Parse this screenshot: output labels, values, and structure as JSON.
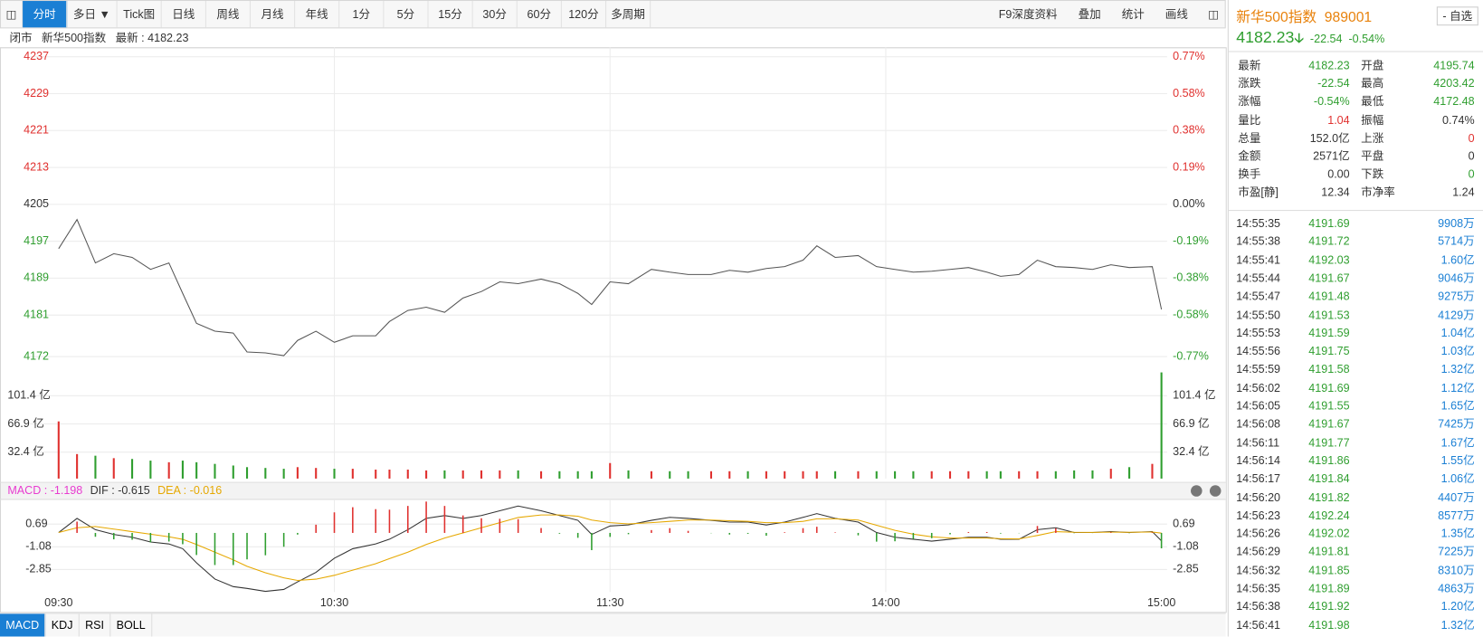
{
  "toolbar": {
    "tabs": [
      "分时",
      "多日 ▼",
      "Tick图",
      "日线",
      "周线",
      "月线",
      "年线",
      "1分",
      "5分",
      "15分",
      "30分",
      "60分",
      "120分",
      "多周期"
    ],
    "active": 0,
    "right": [
      "F9深度资料",
      "叠加",
      "统计",
      "画线"
    ]
  },
  "info_bar": {
    "status": "闭市",
    "name": "新华500指数",
    "latest": "最新 : 4182.23"
  },
  "time_axis": {
    "xticks": [
      {
        "value": 0,
        "label": "09:30"
      },
      {
        "value": 60,
        "label": "10:30"
      },
      {
        "value": 120,
        "label": "11:30"
      },
      {
        "value": 180,
        "label": "14:00"
      },
      {
        "value": 240,
        "label": "15:00"
      }
    ]
  },
  "price_chart": {
    "type": "line",
    "color": "#555555",
    "xlim": [
      0,
      240
    ],
    "ylim": [
      4172,
      4237
    ],
    "yticks": [
      4172,
      4181,
      4189,
      4197,
      4205,
      4213,
      4221,
      4229,
      4237
    ],
    "ytick_colors": [
      "#2f9e2f",
      "#2f9e2f",
      "#2f9e2f",
      "#2f9e2f",
      "#333333",
      "#e0312f",
      "#e0312f",
      "#e0312f",
      "#e0312f"
    ],
    "pct_labels": [
      "-0.77%",
      "-0.58%",
      "-0.38%",
      "-0.19%",
      "0.00%",
      "0.19%",
      "0.38%",
      "0.58%",
      "0.77%"
    ],
    "x": [
      0,
      4,
      8,
      12,
      16,
      20,
      24,
      27,
      30,
      34,
      38,
      41,
      45,
      49,
      52,
      56,
      60,
      64,
      69,
      72,
      76,
      80,
      84,
      88,
      92,
      96,
      100,
      105,
      109,
      113,
      116,
      120,
      124,
      129,
      133,
      137,
      142,
      146,
      150,
      154,
      158,
      162,
      165,
      169,
      174,
      178,
      182,
      186,
      190,
      194,
      198,
      202,
      205,
      209,
      213,
      217,
      221,
      225,
      229,
      233,
      238,
      240
    ],
    "values": [
      4195.4,
      4201.7,
      4192.3,
      4194.3,
      4193.5,
      4190.9,
      4192.3,
      4185.7,
      4179.2,
      4177.5,
      4177.1,
      4173.0,
      4172.8,
      4172.2,
      4175.5,
      4177.5,
      4175.1,
      4176.5,
      4176.5,
      4179.6,
      4182.0,
      4182.7,
      4181.6,
      4184.7,
      4186.1,
      4188.2,
      4187.8,
      4188.8,
      4187.8,
      4185.7,
      4183.3,
      4188.2,
      4187.8,
      4190.9,
      4190.3,
      4189.8,
      4189.8,
      4190.7,
      4190.3,
      4191.1,
      4191.5,
      4192.9,
      4196.0,
      4193.5,
      4193.9,
      4191.5,
      4190.9,
      4190.3,
      4190.5,
      4190.9,
      4191.3,
      4190.3,
      4189.4,
      4189.8,
      4192.9,
      4191.5,
      4191.3,
      4190.9,
      4191.9,
      4191.3,
      4191.5,
      4182.23
    ]
  },
  "volume_chart": {
    "type": "bar",
    "ylim": [
      0,
      132
    ],
    "yticks": [
      {
        "value": 32.4,
        "label": "32.4 亿"
      },
      {
        "value": 66.9,
        "label": "66.9 亿"
      },
      {
        "value": 101.4,
        "label": "101.4 亿"
      }
    ],
    "values": [
      70,
      30,
      28,
      25,
      24,
      22,
      20,
      22,
      20,
      18,
      16,
      14,
      13,
      12,
      14,
      13,
      12,
      12,
      11,
      11,
      11,
      10,
      10,
      10,
      10,
      10,
      10,
      9,
      9,
      9,
      9,
      19,
      10,
      9,
      9,
      9,
      9,
      9,
      9,
      9,
      9,
      9,
      9,
      9,
      9,
      9,
      9,
      9,
      9,
      9,
      9,
      9,
      9,
      9,
      9,
      9,
      10,
      10,
      12,
      14,
      18,
      130
    ],
    "colors": [
      "#e0312f",
      "#e0312f",
      "#2f9e2f",
      "#e0312f",
      "#2f9e2f",
      "#2f9e2f",
      "#e0312f",
      "#2f9e2f",
      "#2f9e2f",
      "#2f9e2f",
      "#2f9e2f",
      "#2f9e2f",
      "#2f9e2f",
      "#2f9e2f",
      "#e0312f",
      "#e0312f",
      "#2f9e2f",
      "#e0312f",
      "#e0312f",
      "#e0312f",
      "#e0312f",
      "#e0312f",
      "#2f9e2f",
      "#e0312f",
      "#e0312f",
      "#e0312f",
      "#2f9e2f",
      "#e0312f",
      "#2f9e2f",
      "#2f9e2f",
      "#2f9e2f",
      "#e0312f",
      "#2f9e2f",
      "#e0312f",
      "#2f9e2f",
      "#2f9e2f",
      "#e0312f",
      "#e0312f",
      "#2f9e2f",
      "#e0312f",
      "#e0312f",
      "#e0312f",
      "#e0312f",
      "#2f9e2f",
      "#e0312f",
      "#2f9e2f",
      "#2f9e2f",
      "#2f9e2f",
      "#e0312f",
      "#e0312f",
      "#e0312f",
      "#2f9e2f",
      "#2f9e2f",
      "#e0312f",
      "#e0312f",
      "#2f9e2f",
      "#2f9e2f",
      "#2f9e2f",
      "#e0312f",
      "#2f9e2f",
      "#e0312f",
      "#2f9e2f"
    ]
  },
  "macd_chart": {
    "legend": [
      "MACD : -1.198",
      "DIF : -0.615",
      "DEA : -0.016"
    ],
    "legend_colors": [
      "#e83ad0",
      "#333333",
      "#e6a800"
    ],
    "ylim": [
      -4.9,
      2.83
    ],
    "yticks": [
      -2.85,
      -1.08,
      0.69
    ],
    "up_color": "#e0312f",
    "down_color": "#2f9e2f",
    "series": [
      {
        "name": "DIF",
        "color": "#333333",
        "values": [
          0.03,
          1.13,
          0.25,
          -0.12,
          -0.34,
          -0.71,
          -0.86,
          -1.23,
          -2.33,
          -3.59,
          -4.18,
          -4.32,
          -4.55,
          -4.4,
          -3.81,
          -3.07,
          -1.97,
          -1.23,
          -0.86,
          -0.49,
          0.25,
          1.13,
          1.35,
          1.13,
          1.35,
          1.72,
          2.09,
          1.72,
          1.35,
          0.98,
          -0.12,
          0.54,
          0.62,
          0.98,
          1.21,
          1.13,
          0.98,
          0.84,
          0.84,
          0.62,
          0.84,
          1.21,
          1.5,
          1.13,
          0.84,
          0.03,
          -0.34,
          -0.49,
          -0.64,
          -0.49,
          -0.34,
          -0.34,
          -0.49,
          -0.49,
          0.25,
          0.4,
          0.03,
          0.03,
          0.1,
          0.03,
          0.1,
          -0.615
        ]
      },
      {
        "name": "DEA",
        "color": "#e6a800",
        "values": [
          0.03,
          0.4,
          0.5,
          0.3,
          0.1,
          -0.1,
          -0.3,
          -0.5,
          -0.9,
          -1.5,
          -2.1,
          -2.6,
          -3.1,
          -3.5,
          -3.7,
          -3.6,
          -3.3,
          -2.9,
          -2.4,
          -2.0,
          -1.5,
          -0.9,
          -0.4,
          0.0,
          0.4,
          0.8,
          1.2,
          1.4,
          1.4,
          1.3,
          1.0,
          0.8,
          0.7,
          0.8,
          0.9,
          1.0,
          1.0,
          0.95,
          0.9,
          0.8,
          0.8,
          0.9,
          1.1,
          1.1,
          1.0,
          0.6,
          0.2,
          -0.1,
          -0.3,
          -0.4,
          -0.4,
          -0.4,
          -0.45,
          -0.47,
          -0.2,
          0.1,
          0.05,
          0.04,
          0.06,
          0.05,
          0.07,
          -0.016
        ]
      },
      {
        "name": "MACD",
        "values": [
          0,
          0.88,
          -0.3,
          -0.5,
          -0.53,
          -0.73,
          -0.67,
          -0.88,
          -1.72,
          -2.5,
          -2.5,
          -2.06,
          -1.74,
          -1.08,
          -0.13,
          0.64,
          1.6,
          2.0,
          1.85,
          1.81,
          2.1,
          2.44,
          2.1,
          1.36,
          1.14,
          1.1,
          1.07,
          0.38,
          -0.06,
          -0.38,
          -1.34,
          -0.31,
          -0.1,
          0.22,
          0.37,
          0.16,
          -0.02,
          -0.13,
          -0.07,
          -0.22,
          0.05,
          0.37,
          0.48,
          0.04,
          -0.19,
          -0.68,
          -0.65,
          -0.47,
          -0.41,
          -0.11,
          0.07,
          0.07,
          -0.05,
          -0.02,
          0.54,
          0.36,
          -0.02,
          -0.01,
          0.05,
          -0.02,
          0.04,
          -1.198
        ]
      }
    ]
  },
  "indicator_tabs": [
    "MACD",
    "KDJ",
    "RSI",
    "BOLL"
  ],
  "sidebar": {
    "title": "新华500指数",
    "code": "989001",
    "watch": "- 自选",
    "price": "4182.23",
    "change": "-22.54",
    "change_pct": "-0.54%",
    "stats": [
      [
        {
          "t": "最新"
        },
        {
          "t": "4182.23",
          "c": "#2f9e2f"
        },
        {
          "t": "开盘"
        },
        {
          "t": "4195.74",
          "c": "#2f9e2f"
        }
      ],
      [
        {
          "t": "涨跌"
        },
        {
          "t": "-22.54",
          "c": "#2f9e2f"
        },
        {
          "t": "最高"
        },
        {
          "t": "4203.42",
          "c": "#2f9e2f"
        }
      ],
      [
        {
          "t": "涨幅"
        },
        {
          "t": "-0.54%",
          "c": "#2f9e2f"
        },
        {
          "t": "最低"
        },
        {
          "t": "4172.48",
          "c": "#2f9e2f"
        }
      ],
      [
        {
          "t": "量比"
        },
        {
          "t": "1.04",
          "c": "#e0312f"
        },
        {
          "t": "振幅"
        },
        {
          "t": "0.74%",
          "c": "#333333"
        }
      ],
      [
        {
          "t": "总量"
        },
        {
          "t": "152.0亿",
          "c": "#333333"
        },
        {
          "t": "上涨"
        },
        {
          "t": "0",
          "c": "#e0312f"
        }
      ],
      [
        {
          "t": "金额"
        },
        {
          "t": "2571亿",
          "c": "#333333"
        },
        {
          "t": "平盘"
        },
        {
          "t": "0",
          "c": "#333333"
        }
      ],
      [
        {
          "t": "换手"
        },
        {
          "t": "0.00",
          "c": "#333333"
        },
        {
          "t": "下跌"
        },
        {
          "t": "0",
          "c": "#2f9e2f"
        }
      ],
      [
        {
          "t": "市盈[静]"
        },
        {
          "t": "12.34",
          "c": "#333333"
        },
        {
          "t": "市净率"
        },
        {
          "t": "1.24",
          "c": "#333333"
        }
      ]
    ],
    "trades": [
      [
        "14:55:35",
        "4191.69",
        "9908万"
      ],
      [
        "14:55:38",
        "4191.72",
        "5714万"
      ],
      [
        "14:55:41",
        "4192.03",
        "1.60亿"
      ],
      [
        "14:55:44",
        "4191.67",
        "9046万"
      ],
      [
        "14:55:47",
        "4191.48",
        "9275万"
      ],
      [
        "14:55:50",
        "4191.53",
        "4129万"
      ],
      [
        "14:55:53",
        "4191.59",
        "1.04亿"
      ],
      [
        "14:55:56",
        "4191.75",
        "1.03亿"
      ],
      [
        "14:55:59",
        "4191.58",
        "1.32亿"
      ],
      [
        "14:56:02",
        "4191.69",
        "1.12亿"
      ],
      [
        "14:56:05",
        "4191.55",
        "1.65亿"
      ],
      [
        "14:56:08",
        "4191.67",
        "7425万"
      ],
      [
        "14:56:11",
        "4191.77",
        "1.67亿"
      ],
      [
        "14:56:14",
        "4191.86",
        "1.55亿"
      ],
      [
        "14:56:17",
        "4191.84",
        "1.06亿"
      ],
      [
        "14:56:20",
        "4191.82",
        "4407万"
      ],
      [
        "14:56:23",
        "4192.24",
        "8577万"
      ],
      [
        "14:56:26",
        "4192.02",
        "1.35亿"
      ],
      [
        "14:56:29",
        "4191.81",
        "7225万"
      ],
      [
        "14:56:32",
        "4191.85",
        "8310万"
      ],
      [
        "14:56:35",
        "4191.89",
        "4863万"
      ],
      [
        "14:56:38",
        "4191.92",
        "1.20亿"
      ],
      [
        "14:56:41",
        "4191.98",
        "1.32亿"
      ]
    ]
  }
}
